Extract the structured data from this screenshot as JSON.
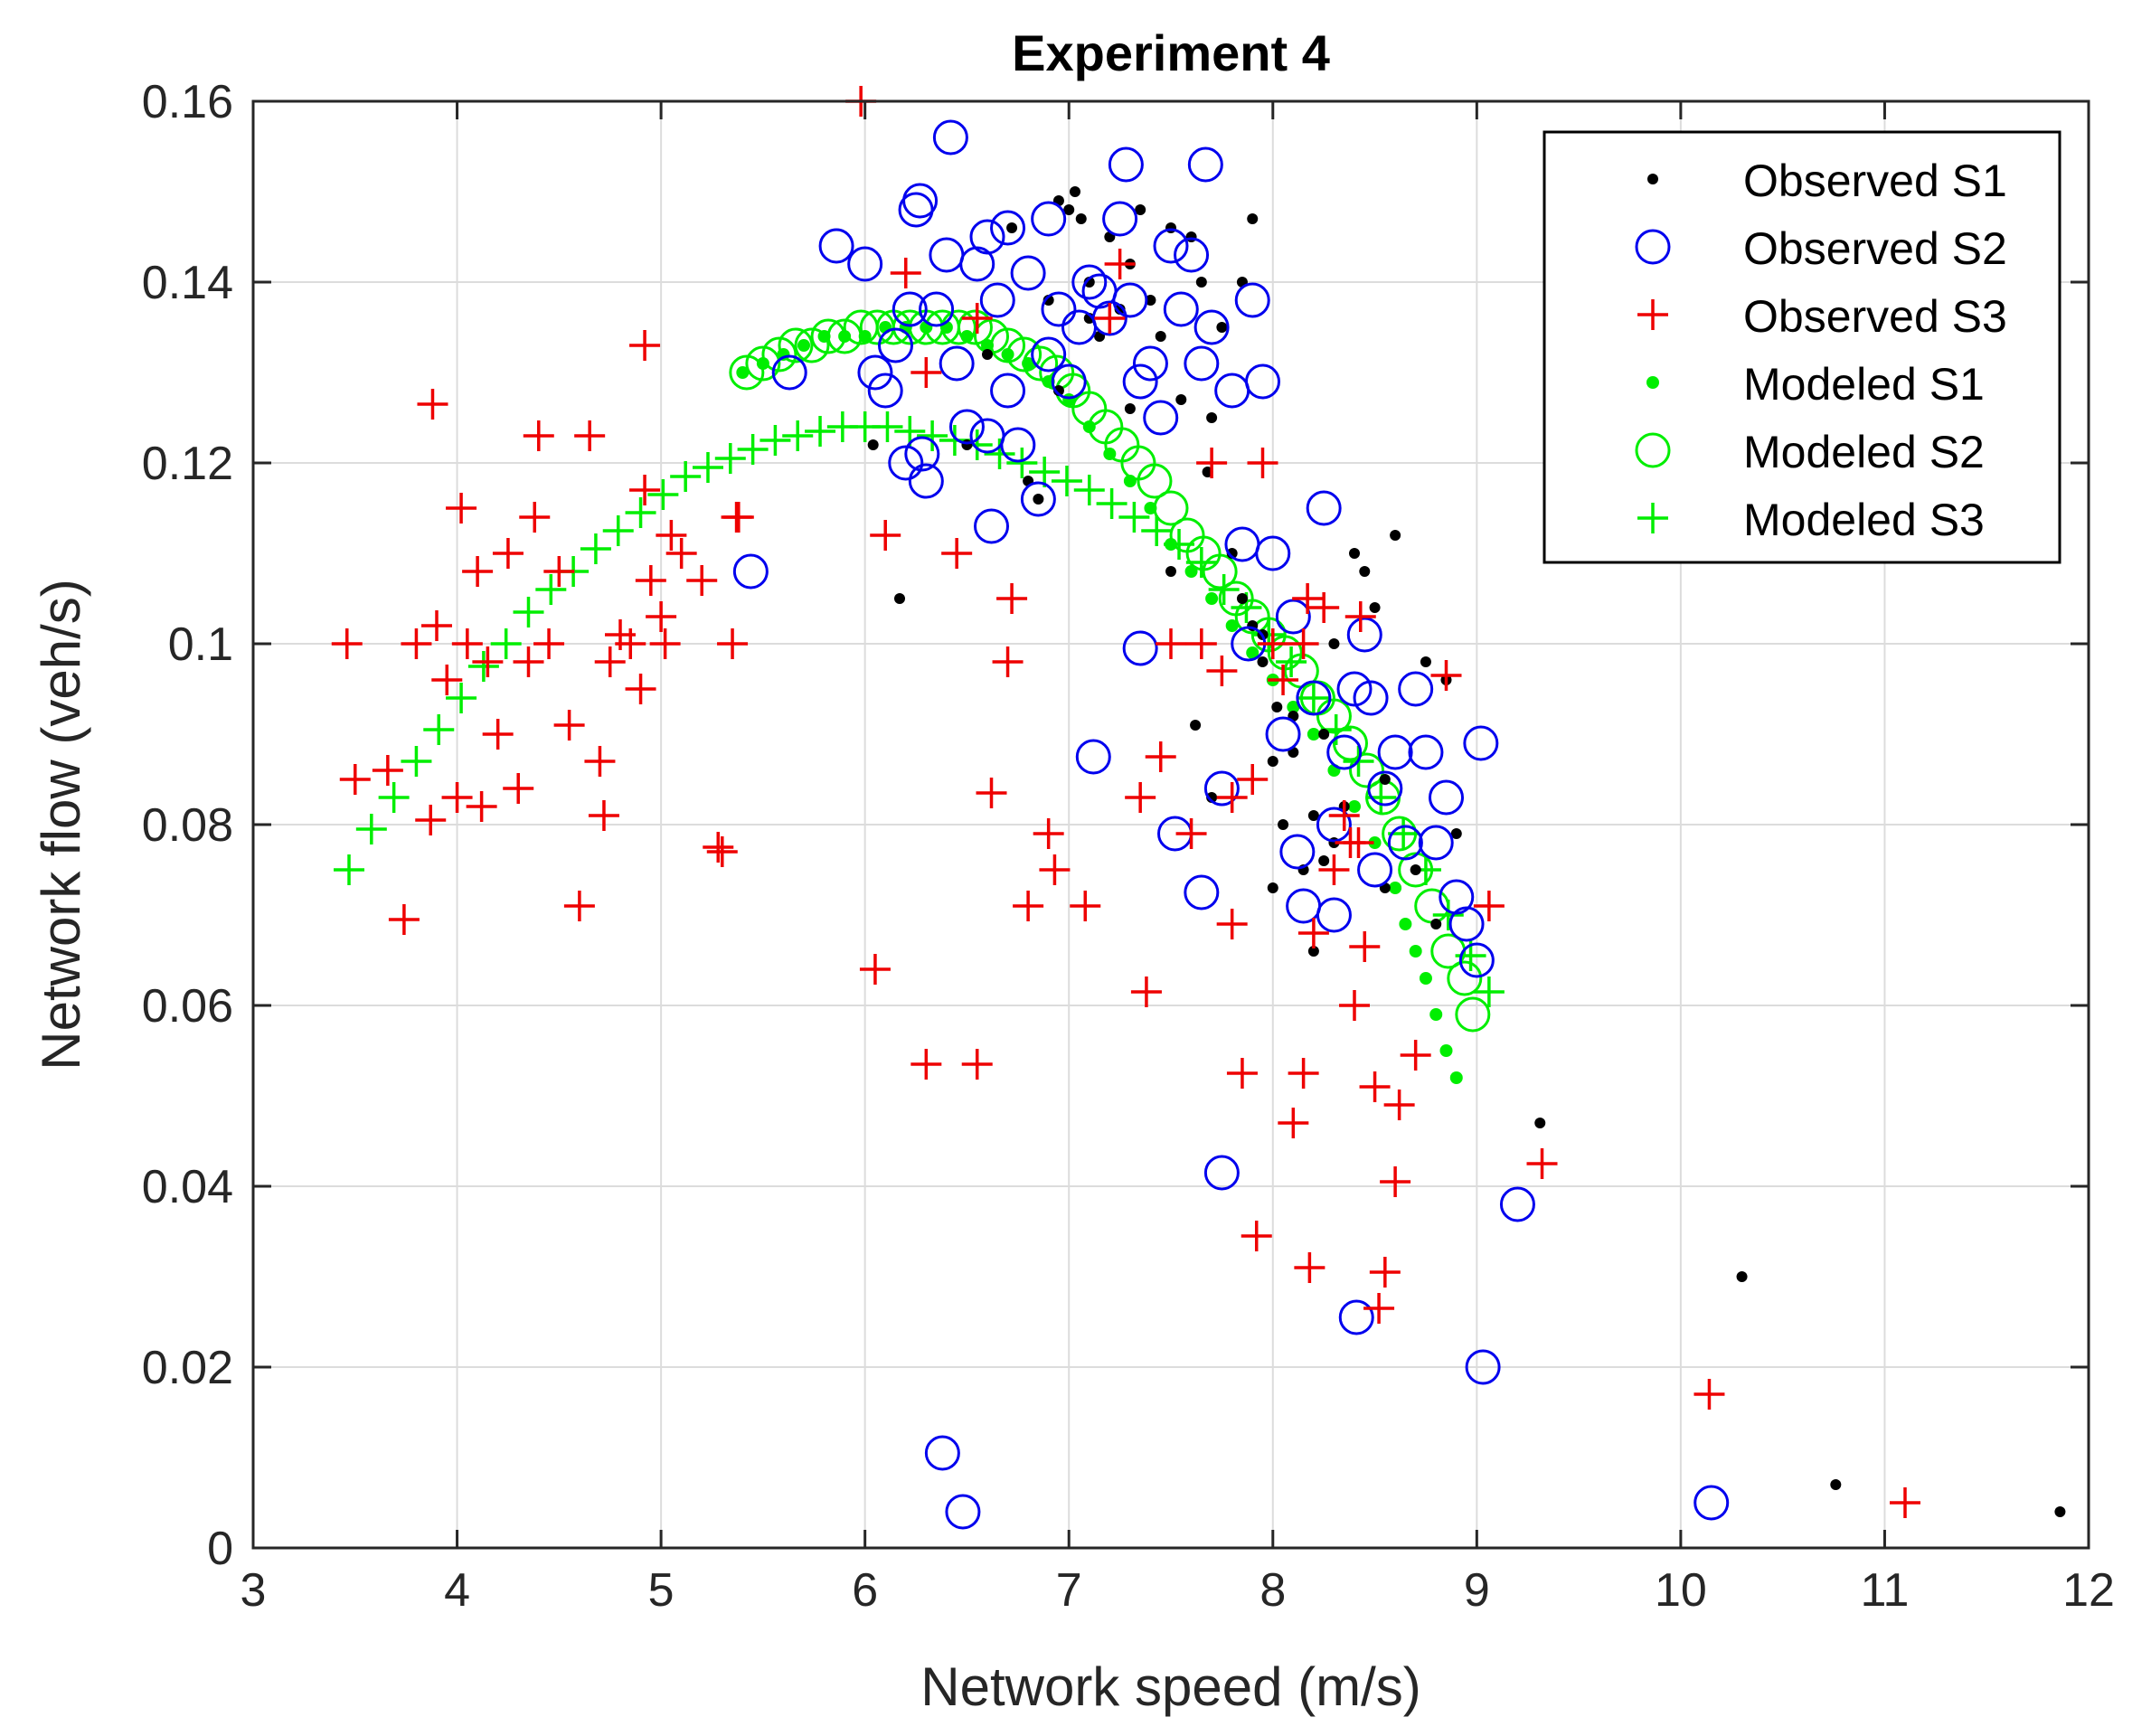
{
  "chart_data": {
    "type": "scatter",
    "title": "Experiment 4",
    "xlabel": "Network speed (m/s)",
    "ylabel": "Network flow (veh/s)",
    "xlim": [
      3,
      12
    ],
    "ylim": [
      0,
      0.16
    ],
    "xticks": [
      3,
      4,
      5,
      6,
      7,
      8,
      9,
      10,
      11,
      12
    ],
    "yticks": [
      0,
      0.02,
      0.04,
      0.06,
      0.08,
      0.1,
      0.12,
      0.14,
      0.16
    ],
    "xtick_labels": [
      "3",
      "4",
      "5",
      "6",
      "7",
      "8",
      "9",
      "10",
      "11",
      "12"
    ],
    "ytick_labels": [
      "0",
      "0.02",
      "0.04",
      "0.06",
      "0.08",
      "0.1",
      "0.12",
      "0.14",
      "0.16"
    ],
    "grid": true,
    "legend_position": "top-right",
    "series": [
      {
        "name": "Observed S1",
        "marker": "dot",
        "color": "#000000",
        "x": [
          6.04,
          6.17,
          6.5,
          6.6,
          6.72,
          6.85,
          6.9,
          6.95,
          7.0,
          7.03,
          7.06,
          7.1,
          7.15,
          7.2,
          7.25,
          7.3,
          7.35,
          7.4,
          7.45,
          7.5,
          7.55,
          7.6,
          7.65,
          7.7,
          7.75,
          7.8,
          7.85,
          7.9,
          7.95,
          8.0,
          8.05,
          8.1,
          8.15,
          8.2,
          8.25,
          8.3,
          8.35,
          8.4,
          8.45,
          8.5,
          8.55,
          8.6,
          8.7,
          8.75,
          8.8,
          8.85,
          8.9,
          9.31,
          10.3,
          10.76,
          11.86,
          7.62,
          7.7,
          7.9,
          8.02,
          8.1,
          8.2,
          7.5,
          7.3,
          7.1,
          6.95,
          6.8,
          7.85,
          8.0,
          8.3,
          8.55,
          7.68,
          7.95,
          8.25
        ],
        "y": [
          0.122,
          0.105,
          0.122,
          0.132,
          0.146,
          0.116,
          0.138,
          0.149,
          0.148,
          0.15,
          0.147,
          0.14,
          0.134,
          0.145,
          0.137,
          0.142,
          0.148,
          0.138,
          0.134,
          0.146,
          0.127,
          0.145,
          0.14,
          0.125,
          0.135,
          0.11,
          0.105,
          0.102,
          0.098,
          0.087,
          0.08,
          0.092,
          0.075,
          0.066,
          0.076,
          0.1,
          0.082,
          0.11,
          0.108,
          0.104,
          0.073,
          0.112,
          0.075,
          0.098,
          0.069,
          0.096,
          0.079,
          0.047,
          0.03,
          0.007,
          0.004,
          0.091,
          0.083,
          0.147,
          0.093,
          0.088,
          0.081,
          0.108,
          0.126,
          0.136,
          0.128,
          0.118,
          0.14,
          0.073,
          0.078,
          0.085,
          0.119,
          0.101,
          0.09
        ]
      },
      {
        "name": "Observed S2",
        "marker": "circle",
        "color": "#0000ee",
        "x": [
          5.44,
          5.63,
          5.86,
          6.0,
          6.05,
          6.1,
          6.15,
          6.2,
          6.25,
          6.27,
          6.3,
          6.35,
          6.4,
          6.42,
          6.45,
          6.5,
          6.55,
          6.6,
          6.62,
          6.65,
          6.7,
          6.75,
          6.8,
          6.85,
          6.9,
          6.95,
          7.0,
          7.05,
          7.1,
          7.15,
          7.2,
          7.25,
          7.28,
          7.3,
          7.35,
          7.4,
          7.45,
          7.5,
          7.55,
          7.6,
          7.65,
          7.67,
          7.7,
          7.75,
          7.8,
          7.85,
          7.9,
          7.95,
          8.0,
          8.05,
          8.1,
          8.15,
          8.2,
          8.25,
          8.3,
          8.35,
          8.4,
          8.45,
          8.5,
          8.55,
          8.6,
          8.65,
          8.7,
          8.75,
          8.8,
          8.85,
          8.9,
          8.95,
          9.0,
          9.02,
          9.2,
          10.15,
          6.38,
          6.48,
          7.12,
          7.75,
          8.41,
          9.03,
          6.22,
          6.28,
          6.6,
          7.52,
          7.65,
          7.88,
          8.12,
          8.3,
          8.48,
          7.35,
          6.9,
          6.7
        ],
        "y": [
          0.108,
          0.13,
          0.144,
          0.142,
          0.13,
          0.128,
          0.133,
          0.12,
          0.148,
          0.149,
          0.118,
          0.137,
          0.143,
          0.156,
          0.131,
          0.124,
          0.142,
          0.145,
          0.113,
          0.138,
          0.146,
          0.122,
          0.141,
          0.116,
          0.147,
          0.137,
          0.129,
          0.135,
          0.14,
          0.139,
          0.136,
          0.147,
          0.153,
          0.138,
          0.129,
          0.131,
          0.125,
          0.144,
          0.137,
          0.143,
          0.131,
          0.153,
          0.135,
          0.084,
          0.128,
          0.111,
          0.138,
          0.129,
          0.11,
          0.09,
          0.103,
          0.071,
          0.094,
          0.115,
          0.07,
          0.088,
          0.095,
          0.101,
          0.075,
          0.084,
          0.088,
          0.078,
          0.095,
          0.088,
          0.078,
          0.083,
          0.072,
          0.069,
          0.065,
          0.089,
          0.038,
          0.005,
          0.0105,
          0.004,
          0.0875,
          0.0415,
          0.0255,
          0.02,
          0.137,
          0.121,
          0.123,
          0.079,
          0.0725,
          0.1,
          0.077,
          0.08,
          0.094,
          0.0995,
          0.132,
          0.128
        ]
      },
      {
        "name": "Observed S3",
        "marker": "plus",
        "color": "#ee0000",
        "x": [
          3.46,
          3.5,
          3.66,
          3.74,
          3.8,
          3.87,
          3.9,
          3.95,
          4.0,
          4.02,
          4.05,
          4.1,
          4.12,
          4.15,
          4.2,
          4.25,
          4.3,
          4.35,
          4.4,
          4.45,
          4.5,
          4.55,
          4.6,
          4.65,
          4.7,
          4.72,
          4.75,
          4.8,
          4.85,
          4.9,
          4.92,
          4.95,
          5.0,
          5.02,
          5.05,
          5.1,
          5.2,
          5.3,
          5.35,
          5.38,
          5.98,
          6.05,
          6.1,
          6.2,
          6.3,
          6.45,
          6.55,
          6.62,
          6.7,
          6.72,
          6.8,
          6.9,
          6.93,
          7.08,
          7.2,
          7.25,
          7.35,
          7.38,
          7.45,
          7.5,
          7.6,
          7.65,
          7.7,
          7.75,
          7.8,
          7.85,
          7.9,
          7.92,
          7.95,
          8.0,
          8.05,
          8.1,
          8.15,
          8.18,
          8.2,
          8.25,
          8.3,
          8.35,
          8.38,
          8.4,
          8.45,
          8.5,
          8.52,
          8.55,
          8.6,
          8.62,
          8.7,
          8.85,
          9.06,
          9.32,
          10.14,
          11.1,
          7.8,
          8.15,
          8.17,
          8.42,
          8.43,
          6.3,
          6.55,
          5.37,
          5.28,
          4.92,
          4.38,
          3.88
        ],
        "y": [
          0.1,
          0.085,
          0.086,
          0.0695,
          0.1,
          0.0805,
          0.102,
          0.096,
          0.083,
          0.115,
          0.1,
          0.108,
          0.082,
          0.098,
          0.09,
          0.11,
          0.084,
          0.098,
          0.123,
          0.1,
          0.108,
          0.091,
          0.071,
          0.123,
          0.087,
          0.081,
          0.098,
          0.101,
          0.1,
          0.095,
          0.133,
          0.107,
          0.103,
          0.1,
          0.112,
          0.11,
          0.107,
          0.077,
          0.1,
          0.114,
          0.16,
          0.064,
          0.112,
          0.141,
          0.13,
          0.11,
          0.136,
          0.0835,
          0.098,
          0.105,
          0.071,
          0.079,
          0.075,
          0.071,
          0.136,
          0.142,
          0.083,
          0.0615,
          0.0875,
          0.1,
          0.079,
          0.1,
          0.12,
          0.097,
          0.069,
          0.0525,
          0.085,
          0.0345,
          0.12,
          0.1,
          0.096,
          0.047,
          0.0525,
          0.031,
          0.068,
          0.104,
          0.075,
          0.081,
          0.078,
          0.06,
          0.0665,
          0.051,
          0.0265,
          0.0305,
          0.0405,
          0.049,
          0.0545,
          0.0965,
          0.071,
          0.0425,
          0.017,
          0.005,
          0.083,
          0.1,
          0.105,
          0.078,
          0.103,
          0.0535,
          0.0535,
          0.114,
          0.0775,
          0.117,
          0.114,
          0.1265
        ]
      },
      {
        "name": "Modeled S1",
        "marker": "dot-large",
        "color": "#00ee00",
        "x": [
          5.4,
          5.5,
          5.6,
          5.7,
          5.8,
          5.9,
          6.0,
          6.1,
          6.2,
          6.3,
          6.4,
          6.5,
          6.6,
          6.7,
          6.8,
          6.9,
          7.0,
          7.1,
          7.2,
          7.3,
          7.4,
          7.5,
          7.6,
          7.7,
          7.8,
          7.9,
          8.0,
          8.1,
          8.2,
          8.3,
          8.4,
          8.5,
          8.6,
          8.65,
          8.7,
          8.75,
          8.8,
          8.85,
          8.9
        ],
        "y": [
          0.13,
          0.131,
          0.132,
          0.133,
          0.134,
          0.134,
          0.134,
          0.135,
          0.135,
          0.135,
          0.135,
          0.134,
          0.133,
          0.132,
          0.131,
          0.129,
          0.127,
          0.124,
          0.121,
          0.118,
          0.115,
          0.111,
          0.108,
          0.105,
          0.102,
          0.099,
          0.096,
          0.093,
          0.09,
          0.086,
          0.082,
          0.078,
          0.073,
          0.069,
          0.066,
          0.063,
          0.059,
          0.055,
          0.052
        ]
      },
      {
        "name": "Modeled S2",
        "marker": "circle",
        "color": "#00ee00",
        "x": [
          5.42,
          5.5,
          5.58,
          5.66,
          5.74,
          5.82,
          5.9,
          5.98,
          6.06,
          6.14,
          6.22,
          6.3,
          6.38,
          6.46,
          6.54,
          6.62,
          6.7,
          6.78,
          6.86,
          6.94,
          7.02,
          7.1,
          7.18,
          7.26,
          7.34,
          7.42,
          7.5,
          7.58,
          7.66,
          7.74,
          7.82,
          7.9,
          7.98,
          8.06,
          8.14,
          8.22,
          8.3,
          8.38,
          8.46,
          8.54,
          8.62,
          8.7,
          8.78,
          8.86,
          8.94,
          8.98
        ],
        "y": [
          0.13,
          0.131,
          0.132,
          0.133,
          0.133,
          0.134,
          0.134,
          0.135,
          0.135,
          0.135,
          0.135,
          0.135,
          0.135,
          0.135,
          0.135,
          0.134,
          0.133,
          0.132,
          0.131,
          0.13,
          0.128,
          0.126,
          0.124,
          0.122,
          0.12,
          0.118,
          0.115,
          0.112,
          0.11,
          0.108,
          0.105,
          0.103,
          0.101,
          0.099,
          0.097,
          0.094,
          0.092,
          0.089,
          0.086,
          0.083,
          0.079,
          0.075,
          0.071,
          0.066,
          0.063,
          0.059
        ]
      },
      {
        "name": "Modeled S3",
        "marker": "plus",
        "color": "#00ee00",
        "x": [
          3.47,
          3.58,
          3.69,
          3.8,
          3.91,
          4.02,
          4.13,
          4.24,
          4.35,
          4.46,
          4.57,
          4.68,
          4.79,
          4.9,
          5.01,
          5.12,
          5.23,
          5.34,
          5.45,
          5.56,
          5.67,
          5.78,
          5.89,
          6.0,
          6.11,
          6.22,
          6.33,
          6.44,
          6.55,
          6.66,
          6.77,
          6.88,
          6.99,
          7.1,
          7.21,
          7.32,
          7.43,
          7.54,
          7.65,
          7.76,
          7.87,
          7.98,
          8.09,
          8.2,
          8.31,
          8.42,
          8.53,
          8.64,
          8.75,
          8.86,
          8.97,
          9.06
        ],
        "y": [
          0.075,
          0.0795,
          0.083,
          0.087,
          0.0905,
          0.094,
          0.0975,
          0.1,
          0.1035,
          0.106,
          0.108,
          0.1105,
          0.1125,
          0.1145,
          0.1165,
          0.1185,
          0.1195,
          0.1205,
          0.1215,
          0.1225,
          0.123,
          0.1235,
          0.124,
          0.124,
          0.124,
          0.1235,
          0.123,
          0.1225,
          0.122,
          0.121,
          0.12,
          0.119,
          0.118,
          0.117,
          0.1155,
          0.114,
          0.1125,
          0.111,
          0.109,
          0.106,
          0.104,
          0.101,
          0.098,
          0.094,
          0.0905,
          0.087,
          0.083,
          0.079,
          0.075,
          0.07,
          0.0655,
          0.0615
        ]
      }
    ]
  }
}
